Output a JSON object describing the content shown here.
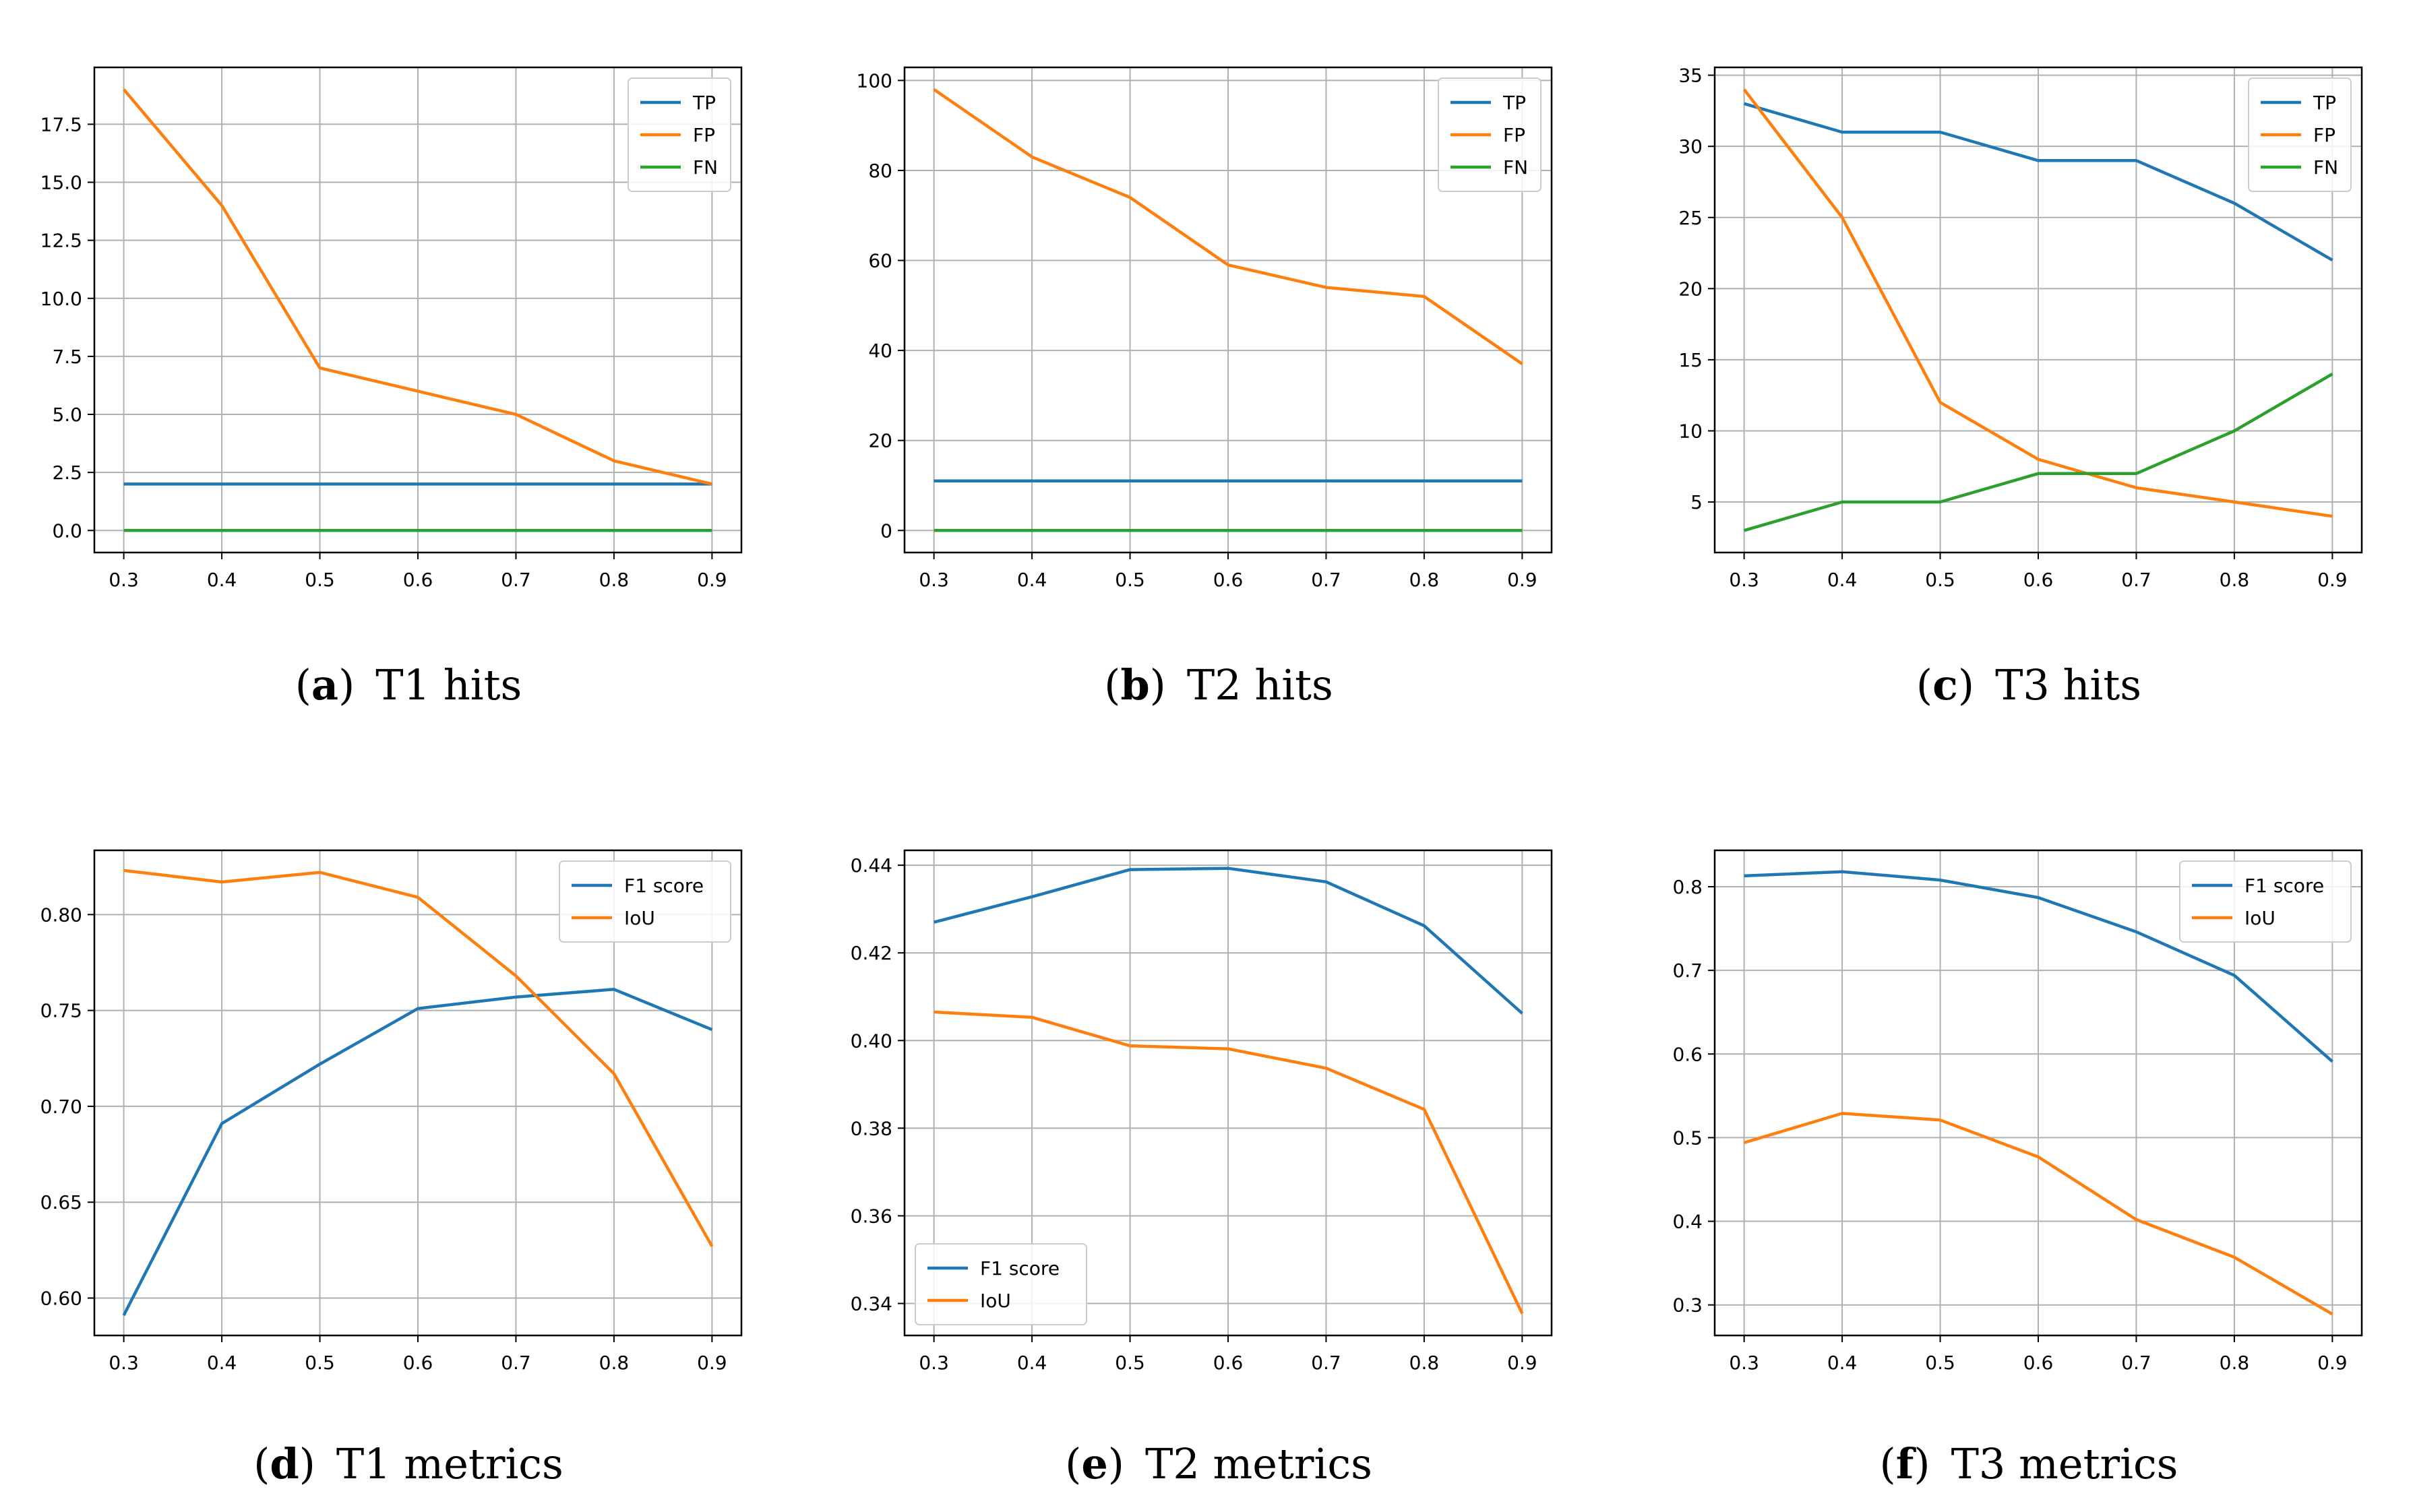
{
  "colors": {
    "blue": "#1f77b4",
    "orange": "#ff7f0e",
    "green": "#2ca02c"
  },
  "captions": [
    {
      "letter": "a",
      "text": "T1 hits"
    },
    {
      "letter": "b",
      "text": "T2 hits"
    },
    {
      "letter": "c",
      "text": "T3 hits"
    },
    {
      "letter": "d",
      "text": "T1 metrics"
    },
    {
      "letter": "e",
      "text": "T2 metrics"
    },
    {
      "letter": "f",
      "text": "T3 metrics"
    }
  ],
  "chart_data": [
    {
      "type": "line",
      "title": "T1 hits",
      "xlabel": "",
      "ylabel": "",
      "x": [
        0.3,
        0.4,
        0.5,
        0.6,
        0.7,
        0.8,
        0.9
      ],
      "xticks": [
        "0.3",
        "0.4",
        "0.5",
        "0.6",
        "0.7",
        "0.8",
        "0.9"
      ],
      "ylim": [
        -0.95,
        19.95
      ],
      "yticks": [
        0,
        2.5,
        5,
        7.5,
        10,
        12.5,
        15,
        17.5
      ],
      "ytick_labels": [
        "0.0",
        "2.5",
        "5.0",
        "7.5",
        "10.0",
        "12.5",
        "15.0",
        "17.5"
      ],
      "legend": "top-right",
      "grid": true,
      "series": [
        {
          "name": "TP",
          "color": "blue",
          "values": [
            2,
            2,
            2,
            2,
            2,
            2,
            2
          ]
        },
        {
          "name": "FP",
          "color": "orange",
          "values": [
            19,
            14,
            7,
            6,
            5,
            3,
            2
          ]
        },
        {
          "name": "FN",
          "color": "green",
          "values": [
            0,
            0,
            0,
            0,
            0,
            0,
            0
          ]
        }
      ]
    },
    {
      "type": "line",
      "title": "T2 hits",
      "xlabel": "",
      "ylabel": "",
      "x": [
        0.3,
        0.4,
        0.5,
        0.6,
        0.7,
        0.8,
        0.9
      ],
      "xticks": [
        "0.3",
        "0.4",
        "0.5",
        "0.6",
        "0.7",
        "0.8",
        "0.9"
      ],
      "ylim": [
        -4.9,
        102.9
      ],
      "yticks": [
        0,
        20,
        40,
        60,
        80,
        100
      ],
      "ytick_labels": [
        "0",
        "20",
        "40",
        "60",
        "80",
        "100"
      ],
      "legend": "top-right",
      "grid": true,
      "series": [
        {
          "name": "TP",
          "color": "blue",
          "values": [
            11,
            11,
            11,
            11,
            11,
            11,
            11
          ]
        },
        {
          "name": "FP",
          "color": "orange",
          "values": [
            98,
            83,
            74,
            59,
            54,
            52,
            37
          ]
        },
        {
          "name": "FN",
          "color": "green",
          "values": [
            0,
            0,
            0,
            0,
            0,
            0,
            0
          ]
        }
      ]
    },
    {
      "type": "line",
      "title": "T3 hits",
      "xlabel": "",
      "ylabel": "",
      "x": [
        0.3,
        0.4,
        0.5,
        0.6,
        0.7,
        0.8,
        0.9
      ],
      "xticks": [
        "0.3",
        "0.4",
        "0.5",
        "0.6",
        "0.7",
        "0.8",
        "0.9"
      ],
      "ylim": [
        1.45,
        35.55
      ],
      "yticks": [
        5,
        10,
        15,
        20,
        25,
        30,
        35
      ],
      "ytick_labels": [
        "5",
        "10",
        "15",
        "20",
        "25",
        "30",
        "35"
      ],
      "legend": "top-right",
      "grid": true,
      "series": [
        {
          "name": "TP",
          "color": "blue",
          "values": [
            33,
            31,
            31,
            29,
            29,
            26,
            22
          ]
        },
        {
          "name": "FP",
          "color": "orange",
          "values": [
            34,
            25,
            12,
            8,
            6,
            5,
            4
          ]
        },
        {
          "name": "FN",
          "color": "green",
          "values": [
            3,
            5,
            5,
            7,
            7,
            10,
            14
          ]
        }
      ]
    },
    {
      "type": "line",
      "title": "T1 metrics",
      "xlabel": "",
      "ylabel": "",
      "x": [
        0.3,
        0.4,
        0.5,
        0.6,
        0.7,
        0.8,
        0.9
      ],
      "xticks": [
        "0.3",
        "0.4",
        "0.5",
        "0.6",
        "0.7",
        "0.8",
        "0.9"
      ],
      "ylim": [
        0.5805,
        0.8335
      ],
      "yticks": [
        0.6,
        0.65,
        0.7,
        0.75,
        0.8
      ],
      "ytick_labels": [
        "0.60",
        "0.65",
        "0.70",
        "0.75",
        "0.80"
      ],
      "legend": "top-right",
      "grid": true,
      "series": [
        {
          "name": "F1 score",
          "color": "blue",
          "values": [
            0.591,
            0.691,
            0.722,
            0.751,
            0.757,
            0.761,
            0.74
          ]
        },
        {
          "name": "IoU",
          "color": "orange",
          "values": [
            0.823,
            0.817,
            0.822,
            0.809,
            0.768,
            0.717,
            0.627
          ]
        }
      ]
    },
    {
      "type": "line",
      "title": "T2 metrics",
      "xlabel": "",
      "ylabel": "",
      "x": [
        0.3,
        0.4,
        0.5,
        0.6,
        0.7,
        0.8,
        0.9
      ],
      "xticks": [
        "0.3",
        "0.4",
        "0.5",
        "0.6",
        "0.7",
        "0.8",
        "0.9"
      ],
      "ylim": [
        0.3327,
        0.4434
      ],
      "yticks": [
        0.34,
        0.36,
        0.38,
        0.4,
        0.42,
        0.44
      ],
      "ytick_labels": [
        "0.34",
        "0.36",
        "0.38",
        "0.40",
        "0.42",
        "0.44"
      ],
      "legend": "bottom-left",
      "grid": true,
      "series": [
        {
          "name": "F1 score",
          "color": "blue",
          "values": [
            0.427,
            0.4328,
            0.439,
            0.4393,
            0.4362,
            0.4262,
            0.4062
          ]
        },
        {
          "name": "IoU",
          "color": "orange",
          "values": [
            0.4065,
            0.4053,
            0.3988,
            0.3981,
            0.3937,
            0.3843,
            0.3377
          ]
        }
      ]
    },
    {
      "type": "line",
      "title": "T3 metrics",
      "xlabel": "",
      "ylabel": "",
      "x": [
        0.3,
        0.4,
        0.5,
        0.6,
        0.7,
        0.8,
        0.9
      ],
      "xticks": [
        "0.3",
        "0.4",
        "0.5",
        "0.6",
        "0.7",
        "0.8",
        "0.9"
      ],
      "ylim": [
        0.2635,
        0.8435
      ],
      "yticks": [
        0.3,
        0.4,
        0.5,
        0.6,
        0.7,
        0.8
      ],
      "ytick_labels": [
        "0.3",
        "0.4",
        "0.5",
        "0.6",
        "0.7",
        "0.8"
      ],
      "legend": "top-right",
      "grid": true,
      "series": [
        {
          "name": "F1 score",
          "color": "blue",
          "values": [
            0.813,
            0.818,
            0.808,
            0.787,
            0.746,
            0.694,
            0.591
          ]
        },
        {
          "name": "IoU",
          "color": "orange",
          "values": [
            0.494,
            0.529,
            0.521,
            0.477,
            0.402,
            0.357,
            0.289
          ]
        }
      ]
    }
  ]
}
